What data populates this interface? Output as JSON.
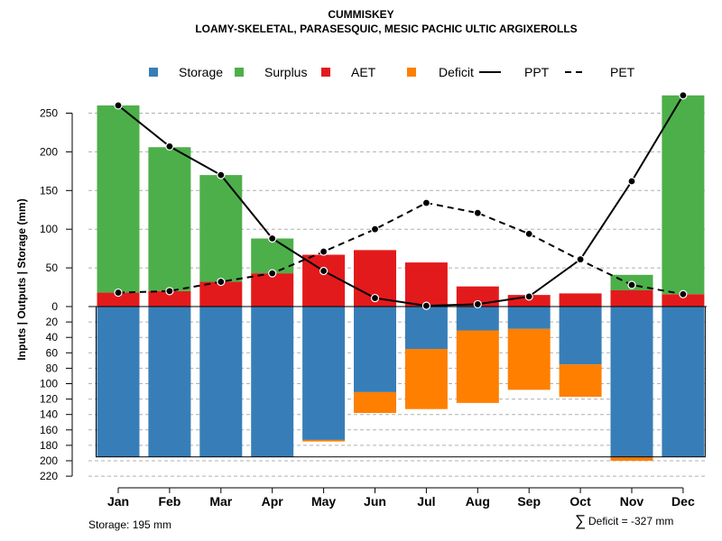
{
  "chart_data": {
    "type": "bar",
    "title": "CUMMISKEY",
    "subtitle": "LOAMY-SKELETAL, PARASESQUIC, MESIC PACHIC ULTIC ARGIXEROLLS",
    "ylabel": "Inputs | Outputs | Storage    (mm)",
    "xlabel": "",
    "categories": [
      "Jan",
      "Feb",
      "Mar",
      "Apr",
      "May",
      "Jun",
      "Jul",
      "Aug",
      "Sep",
      "Oct",
      "Nov",
      "Dec"
    ],
    "ylim_top": [
      0,
      290
    ],
    "ylim_bottom": [
      0,
      220
    ],
    "y_ticks_top": [
      "0",
      "50",
      "100",
      "150",
      "200",
      "250"
    ],
    "y_ticks_bottom": [
      "20",
      "40",
      "60",
      "80",
      "100",
      "120",
      "140",
      "160",
      "180",
      "200",
      "220"
    ],
    "series": [
      {
        "name": "AET",
        "color": "#e31a1c",
        "values": [
          18,
          20,
          32,
          43,
          67,
          73,
          57,
          26,
          15,
          17,
          21,
          16
        ]
      },
      {
        "name": "Surplus",
        "color": "#4daf4a",
        "values": [
          242,
          186,
          138,
          45,
          0,
          0,
          0,
          0,
          0,
          0,
          20,
          257
        ]
      },
      {
        "name": "Storage",
        "color": "#377eb8",
        "values": [
          195,
          195,
          195,
          195,
          173,
          111,
          55,
          31,
          29,
          75,
          195,
          195
        ]
      },
      {
        "name": "Deficit",
        "color": "#ff7f00",
        "values": [
          0,
          0,
          0,
          0,
          2,
          27,
          78,
          94,
          79,
          42,
          5,
          0
        ]
      },
      {
        "name": "PPT",
        "color": "#000000",
        "values": [
          260,
          207,
          170,
          88,
          46,
          11,
          1,
          3,
          13,
          61,
          162,
          273
        ]
      },
      {
        "name": "PET",
        "color": "#000000",
        "values": [
          18,
          20,
          32,
          43,
          71,
          100,
          134,
          121,
          94,
          60,
          28,
          16
        ]
      }
    ],
    "legend": [
      {
        "label": "Storage",
        "color": "#377eb8",
        "kind": "square"
      },
      {
        "label": "Surplus",
        "color": "#4daf4a",
        "kind": "square"
      },
      {
        "label": "AET",
        "color": "#e31a1c",
        "kind": "square"
      },
      {
        "label": "Deficit",
        "color": "#ff7f00",
        "kind": "square"
      },
      {
        "label": "PPT",
        "color": "#000000",
        "kind": "solid"
      },
      {
        "label": "PET",
        "color": "#000000",
        "kind": "dashed"
      }
    ],
    "legend_position": "top",
    "grid": true,
    "storage_note": "Storage: 195 mm",
    "deficit_symbol": "∑",
    "deficit_note": "Deficit = -327 mm"
  }
}
